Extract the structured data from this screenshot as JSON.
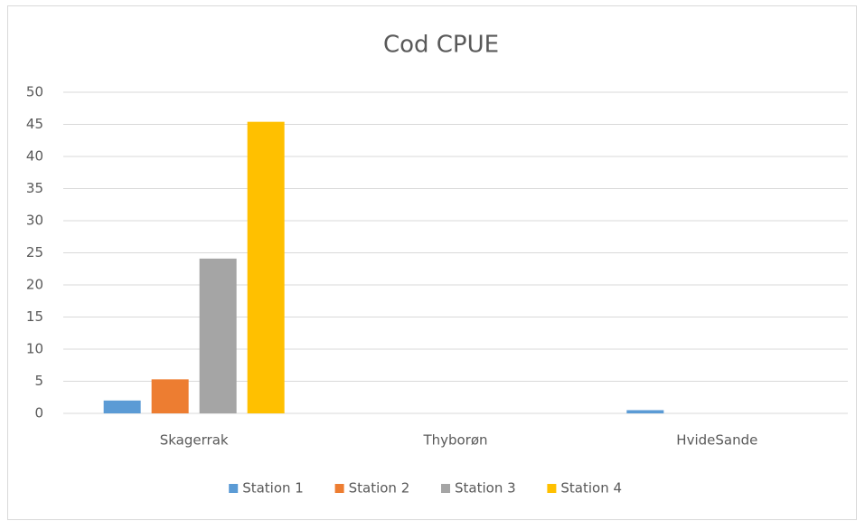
{
  "chart_data": {
    "type": "bar",
    "title": "Cod CPUE",
    "categories": [
      "Skagerrak",
      "Thyborøn",
      "HvideSande"
    ],
    "series": [
      {
        "name": "Station 1",
        "color": "#5b9bd5",
        "values": [
          2.0,
          0,
          0.5
        ]
      },
      {
        "name": "Station 2",
        "color": "#ed7d31",
        "values": [
          5.3,
          0,
          0
        ]
      },
      {
        "name": "Station 3",
        "color": "#a5a5a5",
        "values": [
          24.1,
          0,
          0
        ]
      },
      {
        "name": "Station 4",
        "color": "#ffc000",
        "values": [
          45.4,
          0,
          0
        ]
      }
    ],
    "ylim": [
      0,
      50
    ],
    "yticks": [
      0,
      5,
      10,
      15,
      20,
      25,
      30,
      35,
      40,
      45,
      50
    ],
    "grid": true,
    "legend": "bottom"
  }
}
